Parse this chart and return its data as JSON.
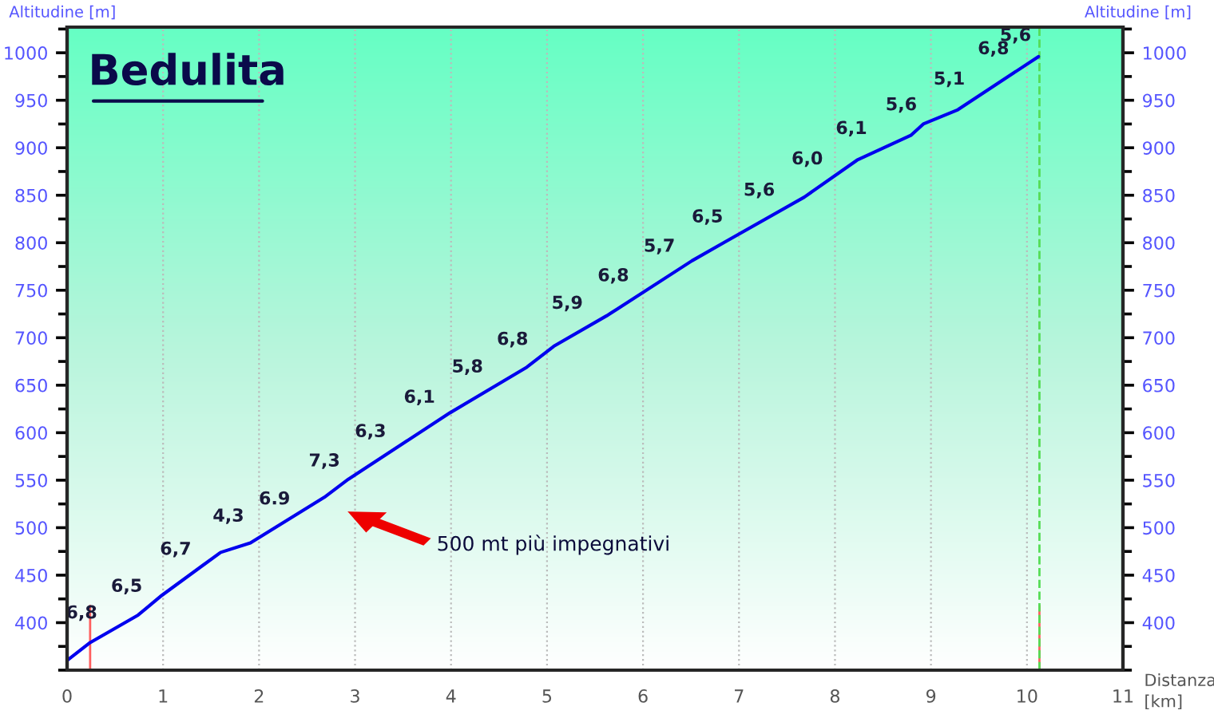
{
  "chart_data": {
    "type": "line",
    "title": "Bedulita",
    "xlabel": "Distanza\n[km]",
    "ylabel": "Altitudine [m]",
    "y2label": "Altitudine [m]",
    "series": [
      {
        "color": "#0000ee",
        "x": [
          0.01,
          0.24,
          0.74,
          0.99,
          1.6,
          1.91,
          2.68,
          2.93,
          3.52,
          3.99,
          4.79,
          5.07,
          5.62,
          5.73,
          6.51,
          6.84,
          7.68,
          8.23,
          8.79,
          8.92,
          9.28,
          10.12
        ],
        "values": [
          361,
          379,
          408,
          429,
          474,
          484,
          532,
          551,
          590,
          621,
          669,
          691,
          723,
          730,
          781,
          800,
          848,
          887,
          913,
          925,
          940,
          996
        ]
      }
    ],
    "xlim": [
      0,
      11
    ],
    "xticks": [
      0,
      1,
      2,
      3,
      4,
      5,
      6,
      7,
      8,
      9,
      10,
      11
    ],
    "ylim": [
      350,
      1027
    ],
    "yticks": [
      400,
      450,
      500,
      550,
      600,
      650,
      700,
      750,
      800,
      850,
      900,
      950,
      1000
    ],
    "y2lim": [
      350,
      1027
    ],
    "y2ticks": [
      400,
      450,
      500,
      550,
      600,
      650,
      700,
      750,
      800,
      850,
      900,
      950,
      1000
    ],
    "grid": "x",
    "marker": "none",
    "line_style": "solid",
    "ref_lines": [
      {
        "axis": "x",
        "value": 0.24,
        "color": "#ff6060",
        "line_style": "solid"
      },
      {
        "axis": "x",
        "value": 10.13,
        "color": "#ff6060",
        "line_style": "solid"
      },
      {
        "axis": "x",
        "value": 10.13,
        "color": "#55dd55",
        "line_style": "dashed"
      }
    ],
    "annotations": [
      {
        "text": "6,8",
        "x": 0.22,
        "y": 377
      },
      {
        "text": "6,5",
        "x": 0.69,
        "y": 405
      },
      {
        "text": "6,7",
        "x": 1.2,
        "y": 444
      },
      {
        "text": "4,3",
        "x": 1.75,
        "y": 479
      },
      {
        "text": "6.9",
        "x": 2.23,
        "y": 497
      },
      {
        "text": "7,3",
        "x": 2.75,
        "y": 537
      },
      {
        "text": "6,3",
        "x": 3.23,
        "y": 568
      },
      {
        "text": "6,1",
        "x": 3.74,
        "y": 604
      },
      {
        "text": "5,8",
        "x": 4.24,
        "y": 636
      },
      {
        "text": "6,8",
        "x": 4.71,
        "y": 665
      },
      {
        "text": "5,9",
        "x": 5.28,
        "y": 703
      },
      {
        "text": "6,8",
        "x": 5.76,
        "y": 732
      },
      {
        "text": "5,7",
        "x": 6.24,
        "y": 763
      },
      {
        "text": "6,5",
        "x": 6.74,
        "y": 794
      },
      {
        "text": "5,6",
        "x": 7.28,
        "y": 822
      },
      {
        "text": "6,0",
        "x": 7.78,
        "y": 855
      },
      {
        "text": "6,1",
        "x": 8.24,
        "y": 887
      },
      {
        "text": "5,6",
        "x": 8.76,
        "y": 912
      },
      {
        "text": "5,1",
        "x": 9.26,
        "y": 939
      },
      {
        "text": "6,8",
        "x": 9.72,
        "y": 971
      },
      {
        "text": "5,6",
        "x": 9.95,
        "y": 985
      },
      "500 mt più impegnativi"
    ]
  }
}
